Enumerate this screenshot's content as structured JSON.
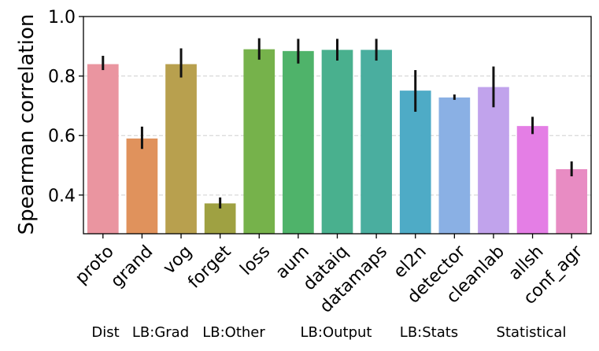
{
  "chart_data": {
    "type": "bar",
    "title": "",
    "xlabel": "",
    "ylabel": "Spearman correlation",
    "ylim": [
      0.27,
      1.0
    ],
    "yticks": [
      "0.4",
      "0.6",
      "0.8",
      "1.0"
    ],
    "grid": "horizontal dashed",
    "categories": [
      "proto",
      "grand",
      "vog",
      "forget",
      "loss",
      "aum",
      "dataiq",
      "datamaps",
      "el2n",
      "detector",
      "cleanlab",
      "allsh",
      "conf_agr"
    ],
    "values": [
      0.84,
      0.59,
      0.84,
      0.372,
      0.89,
      0.884,
      0.888,
      0.888,
      0.751,
      0.728,
      0.763,
      0.632,
      0.487
    ],
    "error_low": [
      0.82,
      0.555,
      0.795,
      0.355,
      0.855,
      0.842,
      0.852,
      0.852,
      0.68,
      0.72,
      0.695,
      0.605,
      0.463
    ],
    "error_high": [
      0.868,
      0.63,
      0.893,
      0.392,
      0.927,
      0.925,
      0.925,
      0.925,
      0.82,
      0.738,
      0.832,
      0.663,
      0.513
    ],
    "colors": [
      "#ea95a0",
      "#e0925c",
      "#b8a04e",
      "#9fa142",
      "#76b24b",
      "#4fb36a",
      "#49b08e",
      "#4aae9f",
      "#4eabc6",
      "#8ab0e4",
      "#c1a3ec",
      "#e47ee5",
      "#e88cc3"
    ],
    "groups": [
      "Dist",
      "LB:Grad",
      "LB:Other",
      "LB:Output",
      "LB:Stats",
      "Statistical"
    ]
  }
}
